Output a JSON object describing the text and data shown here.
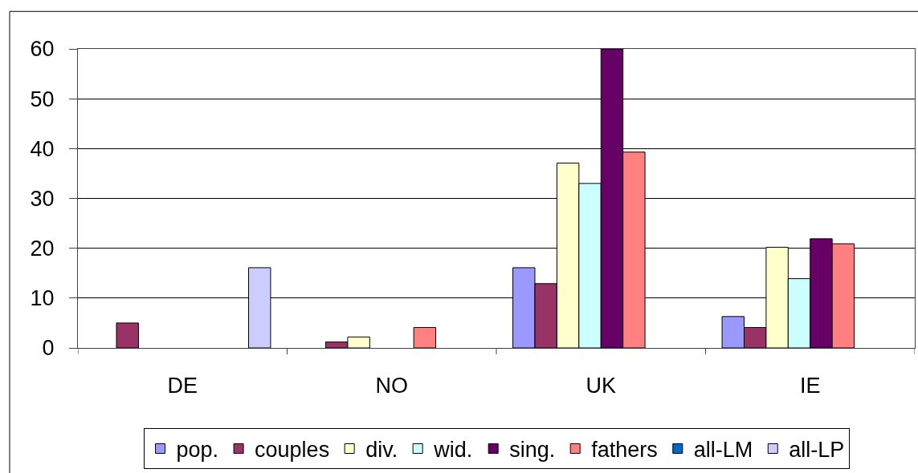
{
  "chart_data": {
    "type": "bar",
    "categories": [
      "DE",
      "NO",
      "UK",
      "IE"
    ],
    "series": [
      {
        "name": "pop.",
        "color": "#9999ff",
        "values": [
          null,
          null,
          16.1,
          6.3
        ]
      },
      {
        "name": "couples",
        "color": "#993366",
        "values": [
          5,
          1.2,
          12.9,
          4.1
        ]
      },
      {
        "name": "div.",
        "color": "#ffffcc",
        "values": [
          null,
          2.2,
          37.1,
          20.2
        ]
      },
      {
        "name": "wid.",
        "color": "#ccffff",
        "values": [
          null,
          null,
          33,
          13.9
        ]
      },
      {
        "name": "sing.",
        "color": "#660066",
        "values": [
          null,
          null,
          60,
          21.9
        ]
      },
      {
        "name": "fathers",
        "color": "#ff8080",
        "values": [
          null,
          4.1,
          39.3,
          20.9
        ]
      },
      {
        "name": "all-LM",
        "color": "#0066cc",
        "values": [
          null,
          null,
          null,
          null
        ]
      },
      {
        "name": "all-LP",
        "color": "#ccccff",
        "values": [
          16.1,
          null,
          null,
          null
        ]
      }
    ],
    "ylim": [
      0,
      60
    ],
    "yticks": [
      0,
      10,
      20,
      30,
      40,
      50,
      60
    ],
    "grid": "y",
    "legend": "bottom"
  }
}
